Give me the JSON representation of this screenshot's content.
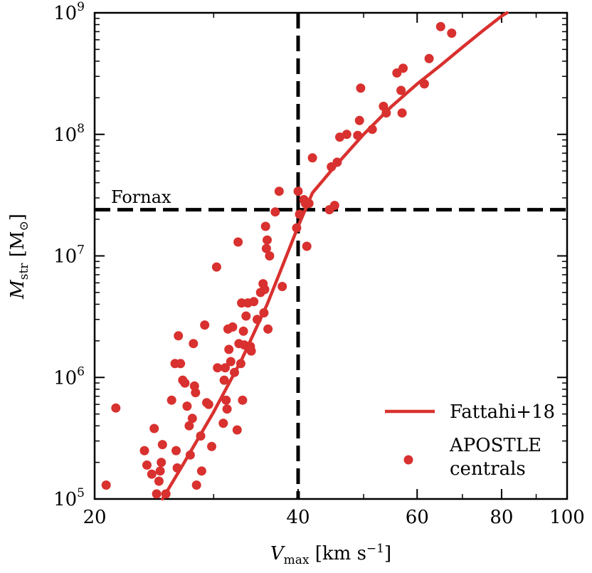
{
  "chart_data": {
    "type": "scatter",
    "title": "",
    "xlabel": {
      "symbol": "V",
      "sub": "max",
      "unit_prefix": " [km s",
      "unit_sup": "−1",
      "unit_suffix": "]"
    },
    "ylabel": {
      "symbol": "M",
      "sub": "str",
      "unit": " [M",
      "unit_suffix": "]"
    },
    "xscale": "log",
    "yscale": "log",
    "xlim": [
      20,
      100
    ],
    "ylim": [
      100000,
      1000000000
    ],
    "x_ticks": [
      {
        "value": 20,
        "label": "20"
      },
      {
        "value": 40,
        "label": "40"
      },
      {
        "value": 60,
        "label": "60"
      },
      {
        "value": 80,
        "label": "80"
      },
      {
        "value": 100,
        "label": "100"
      }
    ],
    "y_ticks": [
      {
        "value": 100000,
        "base": "10",
        "exp": "5"
      },
      {
        "value": 1000000,
        "base": "10",
        "exp": "6"
      },
      {
        "value": 10000000,
        "base": "10",
        "exp": "7"
      },
      {
        "value": 100000000,
        "base": "10",
        "exp": "8"
      },
      {
        "value": 1000000000,
        "base": "10",
        "exp": "9"
      }
    ],
    "reference_lines": {
      "vertical_x": 40,
      "horizontal_y": 24000000,
      "annotation": "Fornax",
      "color": "#000000"
    },
    "series": [
      {
        "name": "Fattahi+18",
        "kind": "line",
        "color": "#d8312f",
        "points": [
          [
            25.2,
            100000
          ],
          [
            27,
            190000
          ],
          [
            30,
            520000
          ],
          [
            33,
            1400000
          ],
          [
            36,
            4000000
          ],
          [
            38,
            8500000
          ],
          [
            40,
            17500000
          ],
          [
            42,
            33000000
          ],
          [
            45,
            52000000
          ],
          [
            50,
            100000000
          ],
          [
            55,
            170000000
          ],
          [
            60,
            260000000
          ],
          [
            65,
            370000000
          ],
          [
            70,
            520000000
          ],
          [
            75,
            710000000
          ],
          [
            80,
            940000000
          ],
          [
            81.5,
            1000000000
          ]
        ]
      },
      {
        "name": "APOSTLE centrals",
        "kind": "scatter",
        "color": "#d8312f",
        "points": [
          [
            20.8,
            130000
          ],
          [
            21.5,
            560000
          ],
          [
            23.7,
            250000
          ],
          [
            23.9,
            190000
          ],
          [
            24.3,
            160000
          ],
          [
            24.5,
            380000
          ],
          [
            24.7,
            110000
          ],
          [
            24.9,
            140000
          ],
          [
            25.0,
            170000
          ],
          [
            25.1,
            200000
          ],
          [
            25.2,
            280000
          ],
          [
            25.5,
            110000
          ],
          [
            26.0,
            650000
          ],
          [
            26.3,
            1300000
          ],
          [
            26.4,
            250000
          ],
          [
            26.5,
            180000
          ],
          [
            26.6,
            2200000
          ],
          [
            26.8,
            1300000
          ],
          [
            27.0,
            950000
          ],
          [
            27.2,
            900000
          ],
          [
            27.4,
            580000
          ],
          [
            27.6,
            400000
          ],
          [
            27.7,
            230000
          ],
          [
            27.9,
            460000
          ],
          [
            28.0,
            1900000
          ],
          [
            28.1,
            850000
          ],
          [
            28.2,
            750000
          ],
          [
            28.3,
            130000
          ],
          [
            28.7,
            330000
          ],
          [
            28.8,
            170000
          ],
          [
            29.1,
            2700000
          ],
          [
            29.3,
            620000
          ],
          [
            29.5,
            600000
          ],
          [
            29.8,
            270000
          ],
          [
            30.3,
            8100000
          ],
          [
            30.4,
            1200000
          ],
          [
            31.0,
            420000
          ],
          [
            31.1,
            950000
          ],
          [
            31.2,
            1200000
          ],
          [
            31.3,
            650000
          ],
          [
            31.4,
            550000
          ],
          [
            31.5,
            2500000
          ],
          [
            31.6,
            1700000
          ],
          [
            31.8,
            1350000
          ],
          [
            32.0,
            2600000
          ],
          [
            32.2,
            1100000
          ],
          [
            32.5,
            370000
          ],
          [
            32.6,
            13000000
          ],
          [
            32.7,
            1900000
          ],
          [
            32.9,
            1300000
          ],
          [
            33.0,
            4100000
          ],
          [
            33.1,
            650000
          ],
          [
            33.2,
            2400000
          ],
          [
            33.3,
            1850000
          ],
          [
            33.5,
            3200000
          ],
          [
            33.7,
            4100000
          ],
          [
            34.0,
            1800000
          ],
          [
            34.1,
            1650000
          ],
          [
            34.4,
            4200000
          ],
          [
            34.8,
            3000000
          ],
          [
            35.2,
            5000000
          ],
          [
            35.5,
            5900000
          ],
          [
            35.6,
            3400000
          ],
          [
            35.7,
            5300000
          ],
          [
            35.8,
            17500000
          ],
          [
            35.9,
            11500000
          ],
          [
            36.0,
            13500000
          ],
          [
            36.1,
            2500000
          ],
          [
            36.3,
            10000000
          ],
          [
            37.0,
            23000000
          ],
          [
            37.5,
            34000000
          ],
          [
            37.9,
            5600000
          ],
          [
            39.8,
            17000000
          ],
          [
            40.0,
            34000000
          ],
          [
            40.2,
            22000000
          ],
          [
            40.8,
            29000000
          ],
          [
            41.0,
            27000000
          ],
          [
            41.2,
            12000000
          ],
          [
            41.5,
            27000000
          ],
          [
            42.0,
            64000000
          ],
          [
            44.5,
            24000000
          ],
          [
            44.8,
            54000000
          ],
          [
            45.3,
            26000000
          ],
          [
            45.7,
            59000000
          ],
          [
            46.1,
            95000000
          ],
          [
            47.2,
            100000000
          ],
          [
            49.3,
            130000000
          ],
          [
            49.0,
            98000000
          ],
          [
            49.5,
            240000000
          ],
          [
            51.5,
            110000000
          ],
          [
            53.5,
            170000000
          ],
          [
            54.0,
            150000000
          ],
          [
            56.0,
            320000000
          ],
          [
            56.8,
            230000000
          ],
          [
            57.0,
            150000000
          ],
          [
            57.2,
            350000000
          ],
          [
            61.5,
            260000000
          ],
          [
            62.5,
            420000000
          ],
          [
            65.0,
            770000000
          ],
          [
            67.5,
            680000000
          ]
        ]
      }
    ],
    "legend": {
      "position": "bottom-right",
      "entries": [
        {
          "label": "Fattahi+18",
          "marker": "line"
        },
        {
          "label": "APOSTLE",
          "label2": "centrals",
          "marker": "dot"
        }
      ]
    }
  }
}
